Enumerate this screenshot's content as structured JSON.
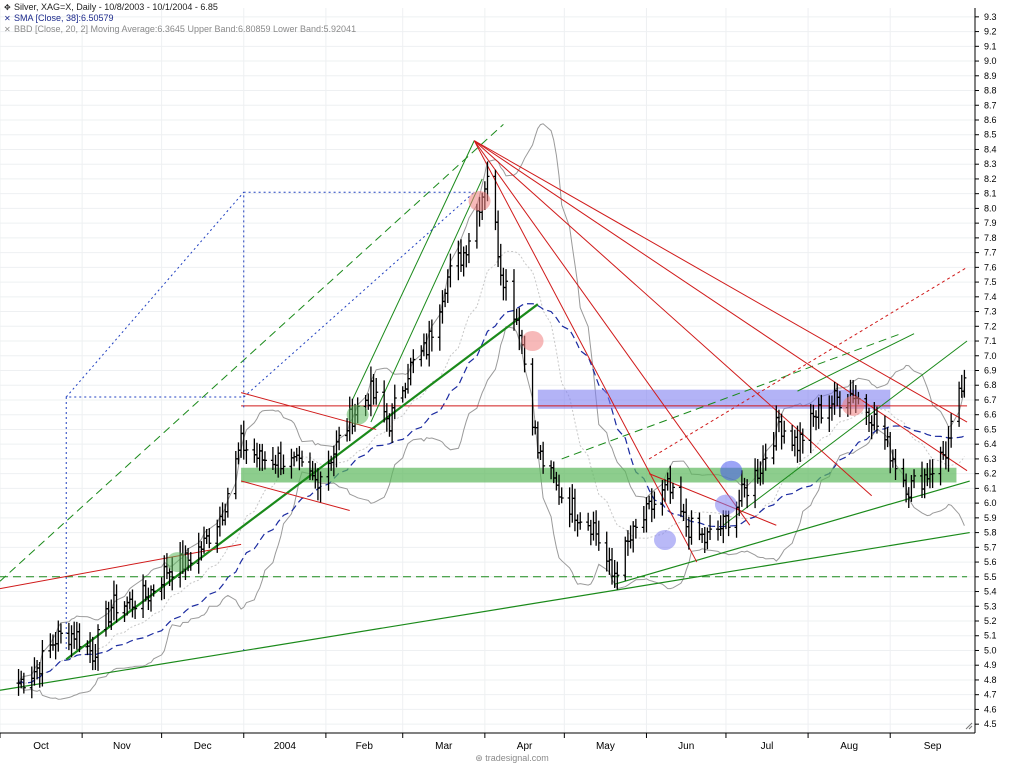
{
  "legend": {
    "instrument": "Silver, XAG=X, Daily - 10/8/2003 - 10/1/2004 - 6.85",
    "sma": "SMA [Close, 38]:6.50579",
    "bbd": "BBD [Close, 20, 2] Moving Average:6.3645 Upper Band:6.80859 Lower Band:5.92041"
  },
  "footer": "tradesignal.com",
  "colors": {
    "bar": "#000000",
    "sma": "#1a2aa0",
    "band": "#9a9a9a",
    "up_trend": "#1a8a1a",
    "resistance": "#d01a1a",
    "support_zone": "#5cb85c",
    "resistance_zone": "#8080f0",
    "channel": "#2040c0"
  },
  "chart_data": {
    "type": "ohlc",
    "title": "Silver, XAG=X, Daily - 10/8/2003 - 10/1/2004",
    "last": 6.85,
    "x_labels": [
      "Oct",
      "Nov",
      "Dec",
      "2004",
      "Feb",
      "Mar",
      "Apr",
      "May",
      "Jun",
      "Jul",
      "Aug",
      "Sep"
    ],
    "y_ticks": [
      4.5,
      4.6,
      4.7,
      4.8,
      4.9,
      5.0,
      5.1,
      5.2,
      5.3,
      5.4,
      5.5,
      5.6,
      5.7,
      5.8,
      5.9,
      6.0,
      6.1,
      6.2,
      6.3,
      6.4,
      6.5,
      6.6,
      6.7,
      6.8,
      6.9,
      7.0,
      7.1,
      7.2,
      7.3,
      7.4,
      7.5,
      7.6,
      7.7,
      7.8,
      7.9,
      8.0,
      8.1,
      8.2,
      8.3,
      8.4,
      8.5,
      8.6,
      8.7,
      8.8,
      8.9,
      9.0,
      9.1,
      9.2,
      9.3
    ],
    "ylim": [
      4.44,
      9.36
    ],
    "price_path": [
      [
        "2003-10-08",
        4.78
      ],
      [
        "2003-10-15",
        4.88
      ],
      [
        "2003-10-22",
        5.08
      ],
      [
        "2003-10-29",
        5.12
      ],
      [
        "2003-11-05",
        4.98
      ],
      [
        "2003-11-12",
        5.3
      ],
      [
        "2003-11-19",
        5.32
      ],
      [
        "2003-11-26",
        5.38
      ],
      [
        "2003-12-03",
        5.55
      ],
      [
        "2003-12-10",
        5.6
      ],
      [
        "2003-12-17",
        5.72
      ],
      [
        "2003-12-24",
        5.95
      ],
      [
        "2003-12-31",
        6.4
      ],
      [
        "2004-01-07",
        6.3
      ],
      [
        "2004-01-14",
        6.3
      ],
      [
        "2004-01-21",
        6.25
      ],
      [
        "2004-01-28",
        6.15
      ],
      [
        "2004-02-04",
        6.35
      ],
      [
        "2004-02-11",
        6.6
      ],
      [
        "2004-02-18",
        6.75
      ],
      [
        "2004-02-25",
        6.55
      ],
      [
        "2004-03-03",
        6.9
      ],
      [
        "2004-03-10",
        7.05
      ],
      [
        "2004-03-17",
        7.5
      ],
      [
        "2004-03-24",
        7.7
      ],
      [
        "2004-03-31",
        8.1
      ],
      [
        "2004-04-02",
        8.25
      ],
      [
        "2004-04-07",
        7.6
      ],
      [
        "2004-04-14",
        7.2
      ],
      [
        "2004-04-21",
        6.35
      ],
      [
        "2004-04-28",
        6.1
      ],
      [
        "2004-05-05",
        5.95
      ],
      [
        "2004-05-12",
        5.85
      ],
      [
        "2004-05-19",
        5.5
      ],
      [
        "2004-05-26",
        5.75
      ],
      [
        "2004-06-02",
        5.95
      ],
      [
        "2004-06-09",
        6.1
      ],
      [
        "2004-06-16",
        5.85
      ],
      [
        "2004-06-23",
        5.75
      ],
      [
        "2004-06-30",
        5.85
      ],
      [
        "2004-07-07",
        6.05
      ],
      [
        "2004-07-14",
        6.25
      ],
      [
        "2004-07-21",
        6.55
      ],
      [
        "2004-07-28",
        6.4
      ],
      [
        "2004-08-04",
        6.6
      ],
      [
        "2004-08-11",
        6.7
      ],
      [
        "2004-08-18",
        6.75
      ],
      [
        "2004-08-25",
        6.6
      ],
      [
        "2004-09-01",
        6.35
      ],
      [
        "2004-09-08",
        6.1
      ],
      [
        "2004-09-15",
        6.2
      ],
      [
        "2004-09-22",
        6.35
      ],
      [
        "2004-09-29",
        6.85
      ]
    ],
    "indicators": [
      {
        "name": "SMA [Close, 38]",
        "last": 6.50579
      },
      {
        "name": "BBD [Close, 20, 2] Moving Average",
        "last": 6.3645
      },
      {
        "name": "Upper Band",
        "last": 6.80859
      },
      {
        "name": "Lower Band",
        "last": 5.92041
      }
    ],
    "horizontal_levels": [
      {
        "value": 6.66,
        "style": "red line"
      },
      {
        "value": 6.2,
        "style": "green zone"
      },
      {
        "value": 5.5,
        "style": "green dashed"
      }
    ]
  }
}
